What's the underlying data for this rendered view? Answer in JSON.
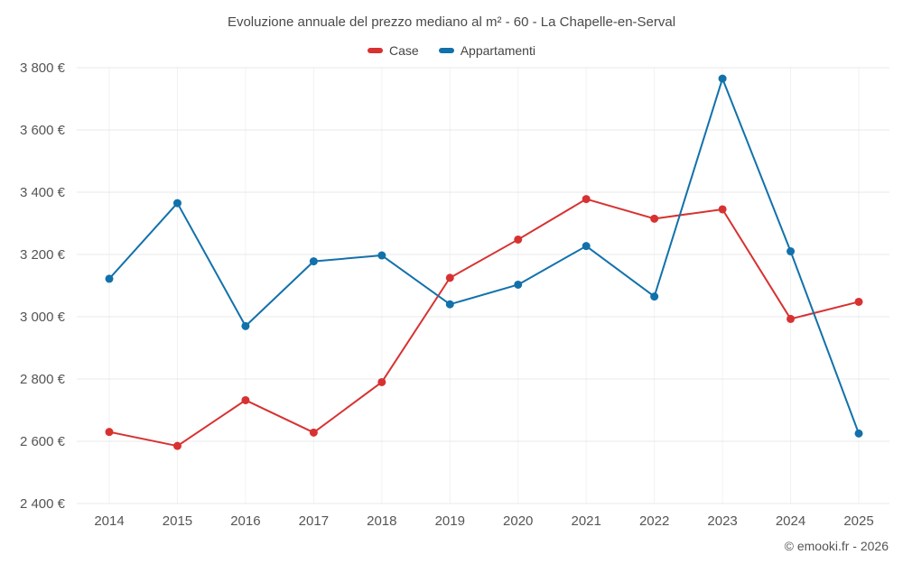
{
  "chart": {
    "title": "Evoluzione annuale del prezzo mediano al m² - 60 - La Chapelle-en-Serval",
    "footer": "© emooki.fr - 2026"
  },
  "chart_data": {
    "type": "line",
    "title": "Evoluzione annuale del prezzo mediano al m² - 60 - La Chapelle-en-Serval",
    "categories": [
      "2014",
      "2015",
      "2016",
      "2017",
      "2018",
      "2019",
      "2020",
      "2021",
      "2022",
      "2023",
      "2024",
      "2025"
    ],
    "series": [
      {
        "name": "Case",
        "color": "#d73231",
        "values": [
          2630,
          2585,
          2732,
          2628,
          2790,
          3125,
          3248,
          3378,
          3315,
          3345,
          2993,
          3048
        ]
      },
      {
        "name": "Appartamenti",
        "color": "#1271ab",
        "values": [
          3122,
          3365,
          2970,
          3178,
          3197,
          3040,
          3103,
          3227,
          3065,
          3765,
          3210,
          2625
        ]
      }
    ],
    "xlabel": "",
    "ylabel": "",
    "ylim": [
      2400,
      3800
    ],
    "ytick_step": 200,
    "ytick_suffix": " €",
    "grid": true,
    "legend_position": "top",
    "marker": "circle"
  }
}
